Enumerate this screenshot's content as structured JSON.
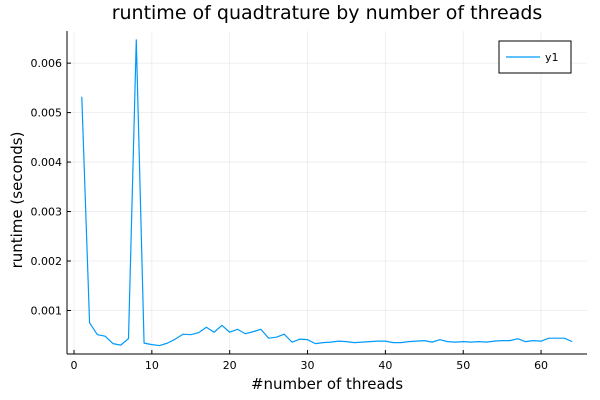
{
  "chart_data": {
    "type": "line",
    "title": "runtime of quadtrature by number of threads",
    "xlabel": "#number of threads",
    "ylabel": "runtime (seconds)",
    "xlim": [
      -0.9,
      65.9
    ],
    "ylim": [
      0.00012,
      0.00665
    ],
    "xticks": [
      0,
      10,
      20,
      30,
      40,
      50,
      60
    ],
    "yticks": [
      0.001,
      0.002,
      0.003,
      0.004,
      0.005,
      0.006
    ],
    "xtick_labels": [
      "0",
      "10",
      "20",
      "30",
      "40",
      "50",
      "60"
    ],
    "ytick_labels": [
      "0.001",
      "0.002",
      "0.003",
      "0.004",
      "0.005",
      "0.006"
    ],
    "grid": true,
    "legend_position": "top-right",
    "series": [
      {
        "name": "y1",
        "color": "#009af9",
        "x": [
          1,
          2,
          3,
          4,
          5,
          6,
          7,
          8,
          9,
          10,
          11,
          12,
          13,
          14,
          15,
          16,
          17,
          18,
          19,
          20,
          21,
          22,
          23,
          24,
          25,
          26,
          27,
          28,
          29,
          30,
          31,
          32,
          33,
          34,
          35,
          36,
          37,
          38,
          39,
          40,
          41,
          42,
          43,
          44,
          45,
          46,
          47,
          48,
          49,
          50,
          51,
          52,
          53,
          54,
          55,
          56,
          57,
          58,
          59,
          60,
          61,
          62,
          63,
          64
        ],
        "y": [
          0.00532,
          0.00075,
          0.00051,
          0.00048,
          0.00033,
          0.0003,
          0.00043,
          0.00647,
          0.00034,
          0.00031,
          0.00029,
          0.00034,
          0.00042,
          0.00052,
          0.00051,
          0.00055,
          0.00066,
          0.00056,
          0.0007,
          0.00056,
          0.00062,
          0.00053,
          0.00057,
          0.00062,
          0.00044,
          0.00046,
          0.00052,
          0.00036,
          0.00042,
          0.00041,
          0.00033,
          0.00035,
          0.00036,
          0.00038,
          0.00037,
          0.00035,
          0.00036,
          0.00037,
          0.00038,
          0.00038,
          0.00035,
          0.00035,
          0.00037,
          0.00038,
          0.00039,
          0.00036,
          0.00041,
          0.00037,
          0.00036,
          0.00037,
          0.00036,
          0.00037,
          0.00036,
          0.00038,
          0.00039,
          0.00039,
          0.00043,
          0.00037,
          0.00039,
          0.00038,
          0.00044,
          0.00044,
          0.00044,
          0.00037
        ]
      }
    ]
  }
}
